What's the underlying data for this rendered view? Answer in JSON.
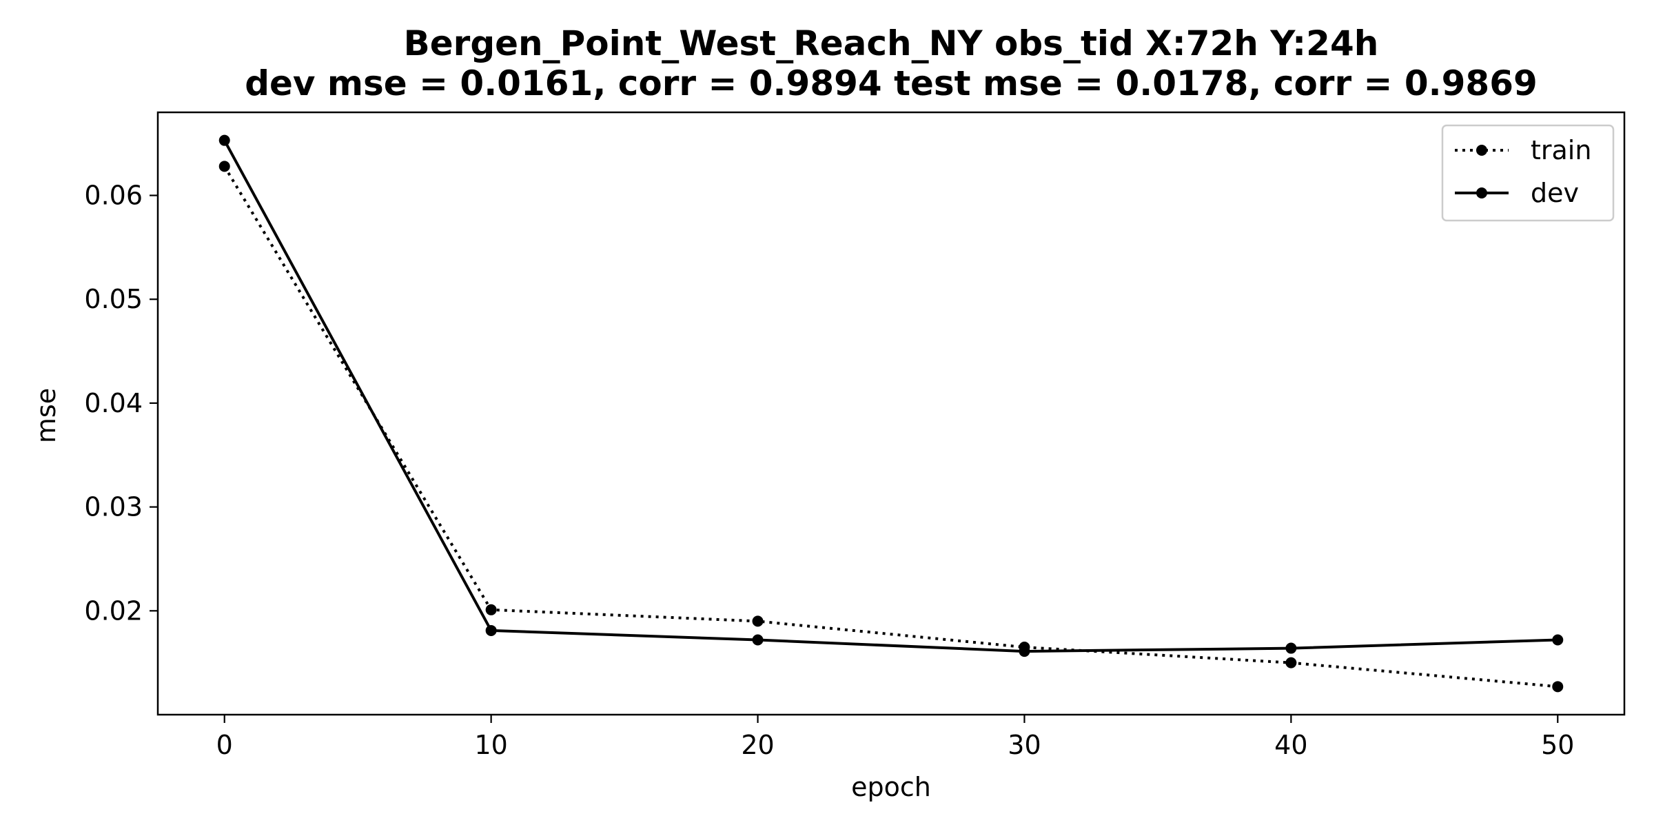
{
  "chart_data": {
    "type": "line",
    "title": "Bergen_Point_West_Reach_NY   obs_tid   X:72h   Y:24h",
    "subtitle": "dev mse = 0.0161, corr = 0.9894   test mse = 0.0178, corr = 0.9869",
    "xlabel": "epoch",
    "ylabel": "mse",
    "x": [
      0,
      10,
      20,
      30,
      40,
      50
    ],
    "xlim": [
      -2.5,
      52.5
    ],
    "ylim": [
      0.01,
      0.068
    ],
    "xticks": [
      0,
      10,
      20,
      30,
      40,
      50
    ],
    "yticks": [
      0.02,
      0.03,
      0.04,
      0.05,
      0.06
    ],
    "ytick_labels": [
      "0.02",
      "0.03",
      "0.04",
      "0.05",
      "0.06"
    ],
    "grid": false,
    "legend_position": "top-right",
    "series": [
      {
        "name": "train",
        "style": "dotted",
        "color": "#000000",
        "values": [
          0.0628,
          0.0201,
          0.019,
          0.0165,
          0.015,
          0.0127
        ]
      },
      {
        "name": "dev",
        "style": "solid",
        "color": "#000000",
        "values": [
          0.0653,
          0.0181,
          0.0172,
          0.0161,
          0.0164,
          0.0172
        ]
      }
    ]
  }
}
